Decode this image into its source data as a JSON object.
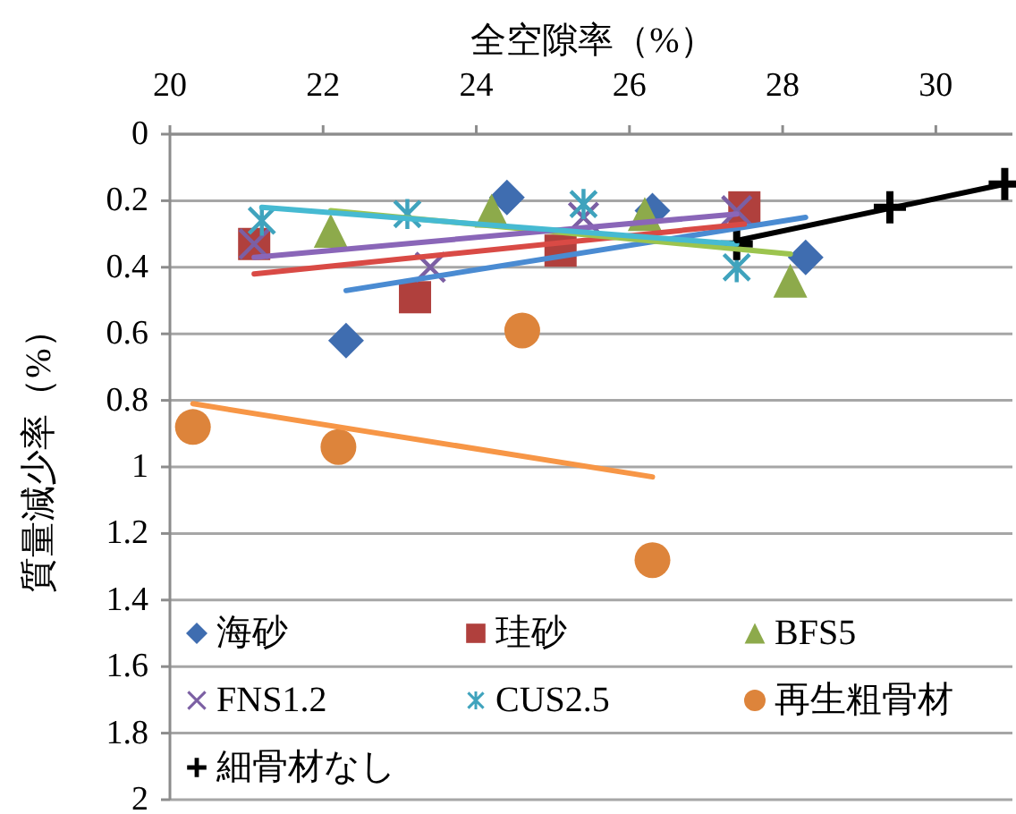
{
  "chart_data": {
    "type": "scatter",
    "xlabel": "全空隙率（%）",
    "ylabel": "質量減少率（%）",
    "xlim": [
      20,
      31
    ],
    "xticks": [
      20,
      22,
      24,
      26,
      28,
      30
    ],
    "ylim": [
      2,
      0
    ],
    "yticks": [
      0,
      0.2,
      0.4,
      0.6,
      0.8,
      1,
      1.2,
      1.4,
      1.6,
      1.8,
      2
    ],
    "grid": "y",
    "legend": "bottom",
    "series": [
      {
        "name": "海砂",
        "marker": "diamond",
        "color": "#3f6db0",
        "x": [
          22.3,
          24.4,
          26.3,
          28.3
        ],
        "values": [
          0.62,
          0.19,
          0.23,
          0.37
        ]
      },
      {
        "name": "珪砂",
        "marker": "square",
        "color": "#b0403d",
        "x": [
          21.1,
          23.2,
          25.1,
          27.5
        ],
        "values": [
          0.33,
          0.49,
          0.35,
          0.22
        ]
      },
      {
        "name": "BFS5",
        "marker": "triangle",
        "color": "#8daa4b",
        "x": [
          22.1,
          24.2,
          26.2,
          28.1
        ],
        "values": [
          0.29,
          0.23,
          0.24,
          0.44
        ]
      },
      {
        "name": "FNS1.2",
        "marker": "x",
        "color": "#7b5fa3",
        "x": [
          21.1,
          23.4,
          25.4,
          27.4
        ],
        "values": [
          0.33,
          0.4,
          0.25,
          0.23
        ]
      },
      {
        "name": "CUS2.5",
        "marker": "cross",
        "color": "#3fa3bd",
        "x": [
          21.2,
          23.1,
          25.4,
          27.4
        ],
        "values": [
          0.26,
          0.24,
          0.21,
          0.4
        ]
      },
      {
        "name": "再生粗骨材",
        "marker": "circle",
        "color": "#dd843b",
        "x": [
          20.3,
          22.2,
          24.6,
          26.3
        ],
        "values": [
          0.88,
          0.94,
          0.59,
          1.28
        ]
      },
      {
        "name": "細骨材なし",
        "marker": "plus",
        "color": "#000000",
        "x": [
          27.4,
          29.4,
          30.9
        ],
        "values": [
          0.33,
          0.22,
          0.15
        ]
      },
      {
        "type": "line",
        "marker": "none",
        "color": "#4a8bd2",
        "x": [
          22.3,
          28.3
        ],
        "values": [
          0.47,
          0.25
        ]
      },
      {
        "type": "line",
        "marker": "none",
        "color": "#d94a45",
        "x": [
          21.1,
          27.5
        ],
        "values": [
          0.42,
          0.27
        ]
      },
      {
        "type": "line",
        "marker": "none",
        "color": "#9cc44e",
        "x": [
          22.1,
          28.1
        ],
        "values": [
          0.23,
          0.36
        ]
      },
      {
        "type": "line",
        "marker": "none",
        "color": "#8a66b8",
        "x": [
          21.1,
          27.4
        ],
        "values": [
          0.37,
          0.24
        ]
      },
      {
        "type": "line",
        "marker": "none",
        "color": "#46bad2",
        "x": [
          21.2,
          27.4
        ],
        "values": [
          0.22,
          0.33
        ]
      },
      {
        "type": "line",
        "marker": "none",
        "color": "#f79646",
        "x": [
          20.3,
          26.3
        ],
        "values": [
          0.81,
          1.03
        ]
      },
      {
        "type": "line",
        "marker": "none",
        "color": "#000000",
        "x": [
          27.4,
          30.9
        ],
        "values": [
          0.32,
          0.15
        ]
      }
    ]
  }
}
